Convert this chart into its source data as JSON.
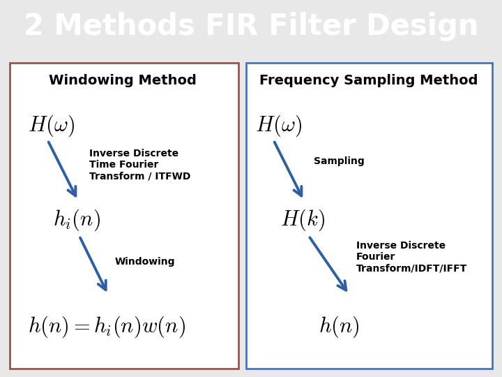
{
  "title": "2 Methods FIR Filter Design",
  "title_bg_color": "#4BACC6",
  "title_text_color": "#FFFFFF",
  "title_fontsize": 30,
  "left_panel_title": "Windowing Method",
  "right_panel_title": "Frequency Sampling Method",
  "panel_title_fontsize": 14,
  "left_border_color": "#A0524A",
  "right_border_color": "#4472C4",
  "bg_color": "#FFFFFF",
  "outer_bg_color": "#E8E8E8",
  "arrow_color": "#2E5FA3",
  "math_color": "#000000",
  "label_color": "#000000",
  "left_math1": "$H(\\omega)$",
  "left_math2": "$h_i(n)$",
  "left_math3": "$h(n) = h_i(n)w(n)$",
  "left_label1": "Inverse Discrete\nTime Fourier\nTransform / ITFWD",
  "left_label2": "Windowing",
  "right_math1": "$H(\\omega)$",
  "right_math2": "$H(k)$",
  "right_math3": "$h(n)$",
  "right_label1": "Sampling",
  "right_label2": "Inverse Discrete\nFourier\nTransform/IDFT/IFFT",
  "math_fontsize": 22,
  "label_fontsize": 10,
  "fig_width": 7.2,
  "fig_height": 5.4,
  "dpi": 100
}
